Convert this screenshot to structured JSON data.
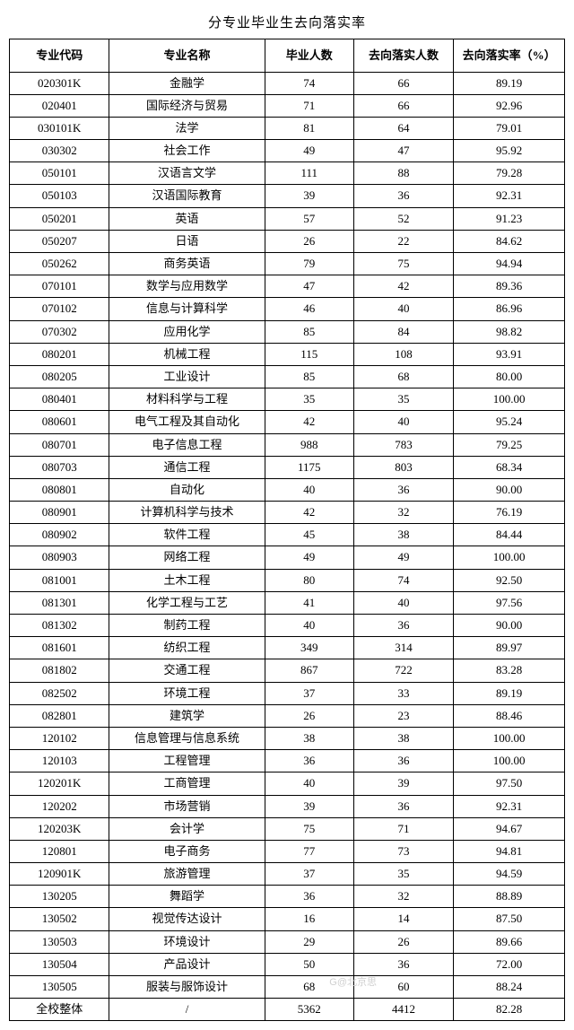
{
  "title": "分专业毕业生去向落实率",
  "columns": [
    "专业代码",
    "专业名称",
    "毕业人数",
    "去向落实人数",
    "去向落实率（%）"
  ],
  "col_widths_pct": [
    18,
    28,
    16,
    18,
    20
  ],
  "border_color": "#000000",
  "background_color": "#ffffff",
  "text_color": "#000000",
  "header_fontsize": 13,
  "cell_fontsize": 13,
  "title_fontsize": 15,
  "rows": [
    [
      "020301K",
      "金融学",
      "74",
      "66",
      "89.19"
    ],
    [
      "020401",
      "国际经济与贸易",
      "71",
      "66",
      "92.96"
    ],
    [
      "030101K",
      "法学",
      "81",
      "64",
      "79.01"
    ],
    [
      "030302",
      "社会工作",
      "49",
      "47",
      "95.92"
    ],
    [
      "050101",
      "汉语言文学",
      "111",
      "88",
      "79.28"
    ],
    [
      "050103",
      "汉语国际教育",
      "39",
      "36",
      "92.31"
    ],
    [
      "050201",
      "英语",
      "57",
      "52",
      "91.23"
    ],
    [
      "050207",
      "日语",
      "26",
      "22",
      "84.62"
    ],
    [
      "050262",
      "商务英语",
      "79",
      "75",
      "94.94"
    ],
    [
      "070101",
      "数学与应用数学",
      "47",
      "42",
      "89.36"
    ],
    [
      "070102",
      "信息与计算科学",
      "46",
      "40",
      "86.96"
    ],
    [
      "070302",
      "应用化学",
      "85",
      "84",
      "98.82"
    ],
    [
      "080201",
      "机械工程",
      "115",
      "108",
      "93.91"
    ],
    [
      "080205",
      "工业设计",
      "85",
      "68",
      "80.00"
    ],
    [
      "080401",
      "材料科学与工程",
      "35",
      "35",
      "100.00"
    ],
    [
      "080601",
      "电气工程及其自动化",
      "42",
      "40",
      "95.24"
    ],
    [
      "080701",
      "电子信息工程",
      "988",
      "783",
      "79.25"
    ],
    [
      "080703",
      "通信工程",
      "1175",
      "803",
      "68.34"
    ],
    [
      "080801",
      "自动化",
      "40",
      "36",
      "90.00"
    ],
    [
      "080901",
      "计算机科学与技术",
      "42",
      "32",
      "76.19"
    ],
    [
      "080902",
      "软件工程",
      "45",
      "38",
      "84.44"
    ],
    [
      "080903",
      "网络工程",
      "49",
      "49",
      "100.00"
    ],
    [
      "081001",
      "土木工程",
      "80",
      "74",
      "92.50"
    ],
    [
      "081301",
      "化学工程与工艺",
      "41",
      "40",
      "97.56"
    ],
    [
      "081302",
      "制药工程",
      "40",
      "36",
      "90.00"
    ],
    [
      "081601",
      "纺织工程",
      "349",
      "314",
      "89.97"
    ],
    [
      "081802",
      "交通工程",
      "867",
      "722",
      "83.28"
    ],
    [
      "082502",
      "环境工程",
      "37",
      "33",
      "89.19"
    ],
    [
      "082801",
      "建筑学",
      "26",
      "23",
      "88.46"
    ],
    [
      "120102",
      "信息管理与信息系统",
      "38",
      "38",
      "100.00"
    ],
    [
      "120103",
      "工程管理",
      "36",
      "36",
      "100.00"
    ],
    [
      "120201K",
      "工商管理",
      "40",
      "39",
      "97.50"
    ],
    [
      "120202",
      "市场营销",
      "39",
      "36",
      "92.31"
    ],
    [
      "120203K",
      "会计学",
      "75",
      "71",
      "94.67"
    ],
    [
      "120801",
      "电子商务",
      "77",
      "73",
      "94.81"
    ],
    [
      "120901K",
      "旅游管理",
      "37",
      "35",
      "94.59"
    ],
    [
      "130205",
      "舞蹈学",
      "36",
      "32",
      "88.89"
    ],
    [
      "130502",
      "视觉传达设计",
      "16",
      "14",
      "87.50"
    ],
    [
      "130503",
      "环境设计",
      "29",
      "26",
      "89.66"
    ],
    [
      "130504",
      "产品设计",
      "50",
      "36",
      "72.00"
    ],
    [
      "130505",
      "服装与服饰设计",
      "68",
      "60",
      "88.24"
    ],
    [
      "全校整体",
      "/",
      "5362",
      "4412",
      "82.28"
    ]
  ],
  "watermark": "G@北京思"
}
